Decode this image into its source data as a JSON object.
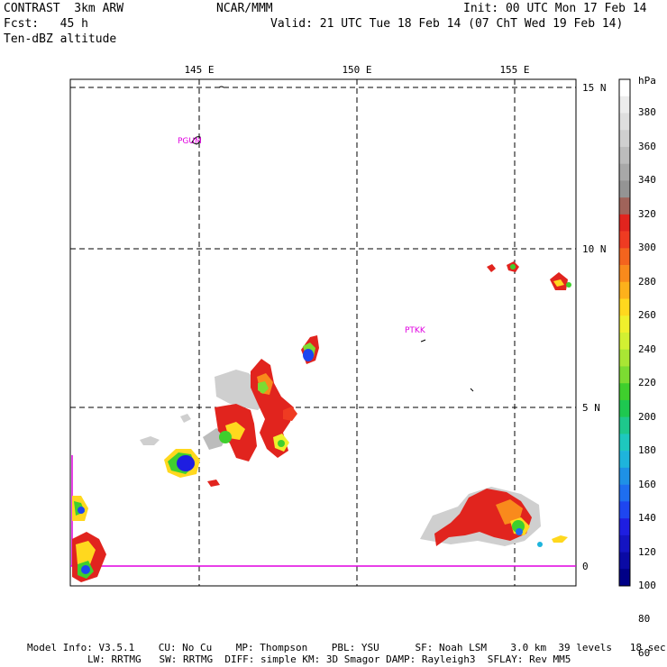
{
  "header": {
    "model": "CONTRAST  3km ARW",
    "org": "NCAR/MMM",
    "init": "Init: 00 UTC Mon 17 Feb 14",
    "fcst": "Fcst:   45 h",
    "valid": "Valid: 21 UTC Tue 18 Feb 14 (07 ChT Wed 19 Feb 14)",
    "field": "Ten-dBZ altitude"
  },
  "axes": {
    "lon_labels": [
      "145 E",
      "150 E",
      "155 E"
    ],
    "lat_labels": [
      "15 N",
      "10 N",
      "5 N",
      "0"
    ]
  },
  "stations": [
    "PGUM",
    "PTKK"
  ],
  "colorbar": {
    "unit": "hPa",
    "labels": [
      "380",
      "360",
      "340",
      "320",
      "300",
      "280",
      "260",
      "240",
      "220",
      "200",
      "180",
      "160",
      "140",
      "120",
      "100",
      "80",
      "60"
    ],
    "colors": [
      "#ffffff",
      "#ececec",
      "#dedede",
      "#cfcfcf",
      "#bcbcbc",
      "#a8a8a8",
      "#949494",
      "#a0635a",
      "#e1241e",
      "#ef3b22",
      "#f4641e",
      "#f98a1c",
      "#fdb11b",
      "#ffd81e",
      "#f0f02c",
      "#d2f032",
      "#a9e634",
      "#7cdc32",
      "#3fcf2d",
      "#1ec850",
      "#1ec88c",
      "#1ec8be",
      "#1eb4dc",
      "#1e91e6",
      "#1e6ef0",
      "#1e46f0",
      "#1e1ee1",
      "#1414c3",
      "#0a0aa5",
      "#000087"
    ]
  },
  "footer": {
    "line1": "Model Info: V3.5.1    CU: No Cu    MP: Thompson    PBL: YSU      SF: Noah LSM    3.0 km  39 levels   18 sec",
    "line2": "LW: RRTMG   SW: RRTMG  DIFF: simple KM: 3D Smagor DAMP: Rayleigh3  SFLAY: Rev MM5"
  }
}
